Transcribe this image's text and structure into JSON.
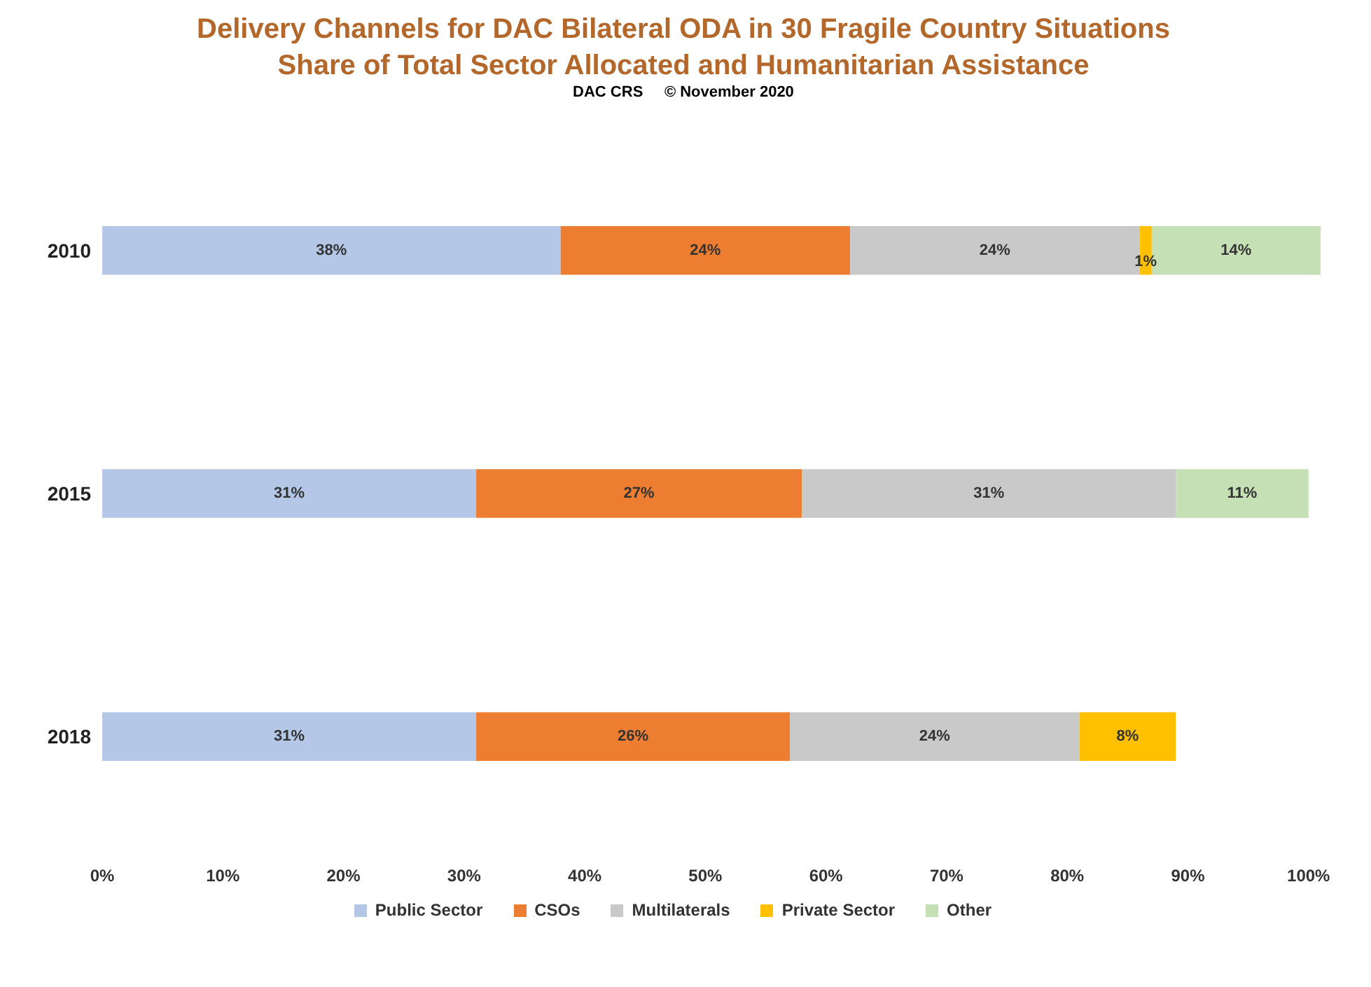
{
  "chart_data": {
    "type": "bar",
    "orientation": "horizontal",
    "stacked": true,
    "title": "Delivery Channels for DAC Bilateral ODA in 30 Fragile Country Situations",
    "subtitle": "Share of Total Sector Allocated and Humanitarian Assistance",
    "annotations": [
      "DAC CRS     © November 2020"
    ],
    "categories": [
      "2010",
      "2015",
      "2018"
    ],
    "series": [
      {
        "name": "Public Sector",
        "color": "#b4c7e7",
        "values": [
          38,
          31,
          31
        ],
        "value_labels": [
          "38%",
          "31%",
          "31%"
        ]
      },
      {
        "name": "CSOs",
        "color": "#ed7d31",
        "values": [
          24,
          27,
          26
        ],
        "value_labels": [
          "24%",
          "27%",
          "26%"
        ]
      },
      {
        "name": "Multilaterals",
        "color": "#c9c9c9",
        "values": [
          24,
          31,
          24
        ],
        "value_labels": [
          "24%",
          "31%",
          "24%"
        ]
      },
      {
        "name": "Private Sector",
        "color": "#ffc000",
        "values": [
          1,
          null,
          8
        ],
        "value_labels": [
          "1%",
          null,
          "8%"
        ]
      },
      {
        "name": "Other",
        "color": "#c5e0b4",
        "values": [
          14,
          11,
          null
        ],
        "value_labels": [
          "14%",
          "11%",
          null
        ]
      }
    ],
    "xlim": [
      0,
      101
    ],
    "xticks": [
      {
        "value": 0,
        "label": "0%"
      },
      {
        "value": 10,
        "label": "10%"
      },
      {
        "value": 20,
        "label": "20%"
      },
      {
        "value": 30,
        "label": "30%"
      },
      {
        "value": 40,
        "label": "40%"
      },
      {
        "value": 50,
        "label": "50%"
      },
      {
        "value": 60,
        "label": "60%"
      },
      {
        "value": 70,
        "label": "70%"
      },
      {
        "value": 80,
        "label": "80%"
      },
      {
        "value": 90,
        "label": "90%"
      },
      {
        "value": 100,
        "label": "100%"
      }
    ],
    "grid": false,
    "legend": "bottom"
  }
}
